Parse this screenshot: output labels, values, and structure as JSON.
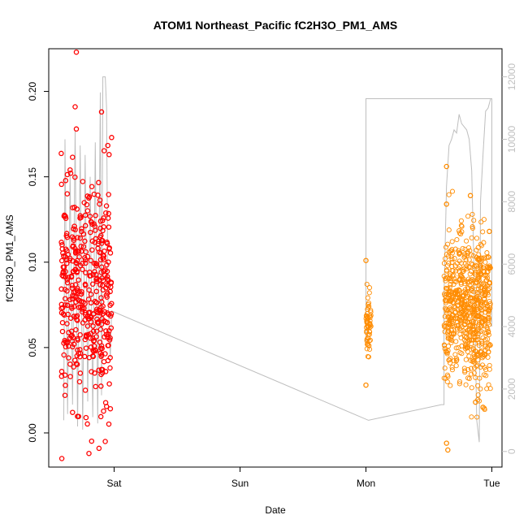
{
  "chart_data": {
    "type": "scatter",
    "title": "ATOM1 Northeast_Pacific fC2H3O_PM1_AMS",
    "xlabel": "Date",
    "ylabel": "fC2H3O_PM1_AMS",
    "x_ticks": [
      "Sat",
      "Sun",
      "Mon",
      "Tue"
    ],
    "xlim": [
      -0.5,
      3.1
    ],
    "ylim": [
      -0.02,
      0.225
    ],
    "y_ticks": [
      0.0,
      0.05,
      0.1,
      0.15,
      0.2
    ],
    "y_tick_labels": [
      "0.00",
      "0.05",
      "0.10",
      "0.15",
      "0.20"
    ],
    "y2_ticks": [
      0,
      2000,
      4000,
      6000,
      8000,
      10000,
      12000
    ],
    "y2_tick_labels": [
      "0",
      "2000",
      "4000",
      "6000",
      "8000",
      "10000",
      "12000"
    ],
    "y2lim": [
      -500,
      12900
    ],
    "grid": false,
    "colors": {
      "flight_a": "#ff0000",
      "flight_b": "#ff8c00",
      "altitude": "#bebebe",
      "right_axis": "#c0c0c0"
    },
    "series": [
      {
        "values_note_units": "x in days after Sat 00:00; y fraction",
        "clusters": [
          {
            "x_range": [
              -0.42,
              -0.02
            ],
            "y_center": 0.082,
            "y_spread": 0.03,
            "n": 420
          },
          {
            "x_range": [
              2.0,
              2.04
            ],
            "y_center": 0.063,
            "y_spread": 0.01,
            "n": 60
          },
          {
            "x_range": [
              2.62,
              2.99
            ],
            "y_center": 0.072,
            "y_spread": 0.022,
            "n": 700
          }
        ],
        "highlights": [
          [
            -0.3,
            0.223
          ],
          [
            -0.31,
            0.191
          ],
          [
            -0.3,
            0.178
          ],
          [
            -0.35,
            0.154
          ],
          [
            -0.1,
            0.188
          ],
          [
            -0.02,
            0.173
          ],
          [
            -0.04,
            0.163
          ],
          [
            -0.2,
            -0.012
          ],
          [
            -0.12,
            -0.009
          ],
          [
            -0.07,
            -0.005
          ],
          [
            -0.39,
            0.022
          ],
          [
            -0.33,
            0.012
          ],
          [
            2.0,
            0.101
          ],
          [
            2.0,
            0.028
          ],
          [
            2.64,
            0.156
          ],
          [
            2.64,
            0.134
          ],
          [
            2.64,
            -0.006
          ],
          [
            2.65,
            -0.01
          ],
          [
            2.83,
            0.139
          ],
          [
            2.98,
            0.118
          ],
          [
            2.93,
            0.015
          ],
          [
            2.87,
            0.018
          ]
        ]
      }
    ],
    "altitude_path": [
      [
        -0.4,
        1000
      ],
      [
        -0.39,
        10000
      ],
      [
        -0.37,
        1200
      ],
      [
        -0.35,
        9000
      ],
      [
        -0.33,
        1500
      ],
      [
        -0.31,
        10300
      ],
      [
        -0.29,
        800
      ],
      [
        -0.27,
        9800
      ],
      [
        -0.25,
        700
      ],
      [
        -0.23,
        9500
      ],
      [
        -0.21,
        1600
      ],
      [
        -0.19,
        8800
      ],
      [
        -0.17,
        1100
      ],
      [
        -0.15,
        9900
      ],
      [
        -0.13,
        900
      ],
      [
        -0.11,
        11500
      ],
      [
        -0.1,
        1800
      ],
      [
        -0.09,
        12000
      ],
      [
        -0.07,
        12000
      ],
      [
        -0.06,
        11000
      ],
      [
        -0.05,
        5000
      ],
      [
        -0.03,
        3000
      ],
      [
        -0.02,
        4500
      ],
      [
        2.02,
        1000
      ],
      [
        2.6,
        1500
      ],
      [
        2.62,
        1500
      ],
      [
        2.62,
        5000
      ],
      [
        2.64,
        8500
      ],
      [
        2.66,
        9800
      ],
      [
        2.68,
        10000
      ],
      [
        2.7,
        10300
      ],
      [
        2.72,
        10200
      ],
      [
        2.74,
        10800
      ],
      [
        2.76,
        10500
      ],
      [
        2.78,
        10400
      ],
      [
        2.8,
        10300
      ],
      [
        2.82,
        10000
      ],
      [
        2.84,
        9000
      ],
      [
        2.86,
        5500
      ],
      [
        2.88,
        1000
      ],
      [
        2.9,
        300
      ],
      [
        2.91,
        8000
      ],
      [
        2.93,
        9500
      ],
      [
        2.95,
        10900
      ],
      [
        2.97,
        11000
      ],
      [
        2.99,
        11300
      ]
    ],
    "altitude_plateau": {
      "x_range": [
        2.0,
        3.0
      ],
      "value": 11300
    }
  }
}
